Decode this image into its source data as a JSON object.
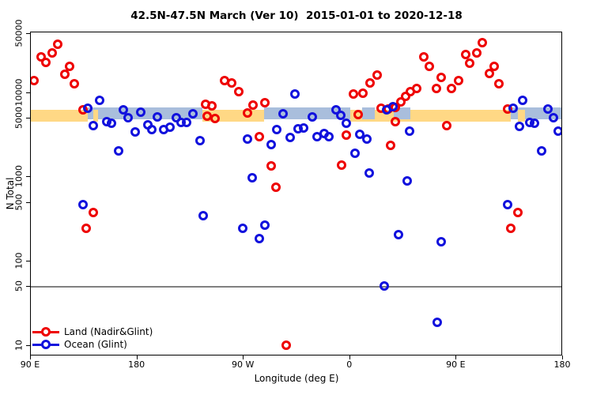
{
  "title": "42.5N-47.5N March (Ver 10)  2015-01-01 to 2020-12-18",
  "axes": {
    "x": {
      "label": "Longitude (deg E)",
      "ticks": [
        {
          "pos": 0,
          "label": "90 E"
        },
        {
          "pos": 90,
          "label": "180"
        },
        {
          "pos": 180,
          "label": "90 W"
        },
        {
          "pos": 270,
          "label": "0"
        },
        {
          "pos": 360,
          "label": "90 E"
        },
        {
          "pos": 450,
          "label": "180"
        }
      ],
      "span_deg": 450
    },
    "y": {
      "label": "N Total",
      "scale": "log",
      "ticks": [
        {
          "value": 50000,
          "label": "50000"
        },
        {
          "value": 10000,
          "label": "10000"
        },
        {
          "value": 5000,
          "label": "5000"
        },
        {
          "value": 1000,
          "label": "1000"
        },
        {
          "value": 500,
          "label": "500"
        },
        {
          "value": 100,
          "label": "100"
        },
        {
          "value": 50,
          "label": "50"
        },
        {
          "value": 10,
          "label": "10"
        }
      ],
      "ylim": [
        10,
        50000
      ]
    }
  },
  "reference_line": {
    "value": 50,
    "color": "#808080"
  },
  "map_strip": {
    "land_color": "#FFD885",
    "ocean_color": "#A9BEDC",
    "segments": [
      {
        "from": 0,
        "to": 48,
        "type": "land"
      },
      {
        "from": 48,
        "to": 145,
        "type": "ocean"
      },
      {
        "from": 145,
        "to": 197,
        "type": "land"
      },
      {
        "from": 197,
        "to": 270,
        "type": "ocean"
      },
      {
        "from": 270,
        "to": 406,
        "type": "land"
      },
      {
        "from": 406,
        "to": 450,
        "type": "ocean"
      },
      {
        "from": 53,
        "to": 57,
        "type": "land"
      },
      {
        "from": 412,
        "to": 418,
        "type": "land"
      },
      {
        "from": 280,
        "to": 291,
        "type": "ocean"
      },
      {
        "from": 307,
        "to": 321,
        "type": "ocean"
      }
    ]
  },
  "legend": [
    {
      "label": "Land (Nadir&Glint)",
      "color": "#EE0000"
    },
    {
      "label": "Ocean (Glint)",
      "color": "#1111DD"
    }
  ],
  "chart_data": {
    "type": "scatter",
    "marker": "open-circle",
    "x_axis_note": "degrees east along axis starting at 90E (axis spans 450 deg: 90E,180,90W,0,90E,180)",
    "xlabel": "Longitude (deg E)",
    "ylabel": "N Total",
    "ylim": [
      10,
      50000
    ],
    "grid": false,
    "legend_position": "bottom-left-inside",
    "series": [
      {
        "name": "Land (Nadir&Glint)",
        "color": "#EE0000",
        "points": [
          [
            2.5,
            13900
          ],
          [
            9,
            26500
          ],
          [
            12.5,
            23100
          ],
          [
            18,
            29900
          ],
          [
            23,
            37900
          ],
          [
            29,
            16500
          ],
          [
            33,
            20600
          ],
          [
            37,
            12900
          ],
          [
            44,
            6280
          ],
          [
            47,
            246
          ],
          [
            53,
            385
          ],
          [
            148,
            7310
          ],
          [
            153,
            6980
          ],
          [
            149,
            5290
          ],
          [
            156,
            4950
          ],
          [
            164,
            14100
          ],
          [
            170,
            13100
          ],
          [
            176,
            10400
          ],
          [
            183,
            5800
          ],
          [
            188,
            7200
          ],
          [
            193,
            3060
          ],
          [
            198,
            7700
          ],
          [
            203,
            1370
          ],
          [
            207,
            760
          ],
          [
            216,
            10.3
          ],
          [
            263,
            1390
          ],
          [
            267,
            3140
          ],
          [
            273,
            9700
          ],
          [
            277,
            5550
          ],
          [
            281,
            9900
          ],
          [
            287,
            13200
          ],
          [
            293,
            16300
          ],
          [
            296,
            6600
          ],
          [
            302,
            6500
          ],
          [
            304,
            2390
          ],
          [
            308,
            6740
          ],
          [
            308,
            4540
          ],
          [
            313,
            7800
          ],
          [
            317,
            9100
          ],
          [
            321,
            10400
          ],
          [
            326,
            11200
          ],
          [
            332,
            26500
          ],
          [
            337,
            20600
          ],
          [
            343,
            11400
          ],
          [
            347,
            15200
          ],
          [
            352,
            4060
          ],
          [
            356,
            11200
          ],
          [
            362,
            14100
          ],
          [
            368,
            28300
          ],
          [
            371,
            22700
          ],
          [
            377,
            29900
          ],
          [
            382,
            39300
          ],
          [
            388,
            17000
          ],
          [
            392,
            20600
          ],
          [
            396,
            12900
          ],
          [
            403,
            6400
          ],
          [
            406,
            246
          ],
          [
            412,
            385
          ]
        ]
      },
      {
        "name": "Ocean (Glint)",
        "color": "#1111DD",
        "points": [
          [
            44,
            478
          ],
          [
            48,
            6600
          ],
          [
            53,
            4060
          ],
          [
            58,
            8170
          ],
          [
            64,
            4540
          ],
          [
            68,
            4380
          ],
          [
            74,
            2060
          ],
          [
            78,
            6360
          ],
          [
            82,
            5060
          ],
          [
            88,
            3480
          ],
          [
            93,
            5880
          ],
          [
            99,
            4150
          ],
          [
            102,
            3660
          ],
          [
            107,
            5170
          ],
          [
            112,
            3700
          ],
          [
            118,
            3920
          ],
          [
            123,
            5060
          ],
          [
            127,
            4470
          ],
          [
            132,
            4470
          ],
          [
            137,
            5660
          ],
          [
            143,
            2700
          ],
          [
            146,
            353
          ],
          [
            179,
            246
          ],
          [
            183,
            2840
          ],
          [
            187,
            980
          ],
          [
            193,
            187
          ],
          [
            198,
            272
          ],
          [
            203,
            2450
          ],
          [
            208,
            3660
          ],
          [
            213,
            5700
          ],
          [
            219,
            2950
          ],
          [
            223,
            9650
          ],
          [
            226,
            3720
          ],
          [
            231,
            3880
          ],
          [
            238,
            5150
          ],
          [
            242,
            3050
          ],
          [
            248,
            3290
          ],
          [
            252,
            3050
          ],
          [
            258,
            6280
          ],
          [
            262,
            5430
          ],
          [
            267,
            4330
          ],
          [
            274,
            1910
          ],
          [
            278,
            3240
          ],
          [
            284,
            2840
          ],
          [
            286,
            1130
          ],
          [
            299,
            52
          ],
          [
            301,
            6280
          ],
          [
            306,
            6880
          ],
          [
            311,
            209
          ],
          [
            318,
            900
          ],
          [
            320,
            3520
          ],
          [
            344,
            19
          ],
          [
            347,
            173
          ],
          [
            403,
            471
          ],
          [
            408,
            6600
          ],
          [
            413,
            4040
          ],
          [
            416,
            8080
          ],
          [
            422,
            4420
          ],
          [
            426,
            4380
          ],
          [
            432,
            2060
          ],
          [
            437,
            6500
          ],
          [
            442,
            5060
          ],
          [
            446,
            3500
          ]
        ]
      }
    ]
  }
}
